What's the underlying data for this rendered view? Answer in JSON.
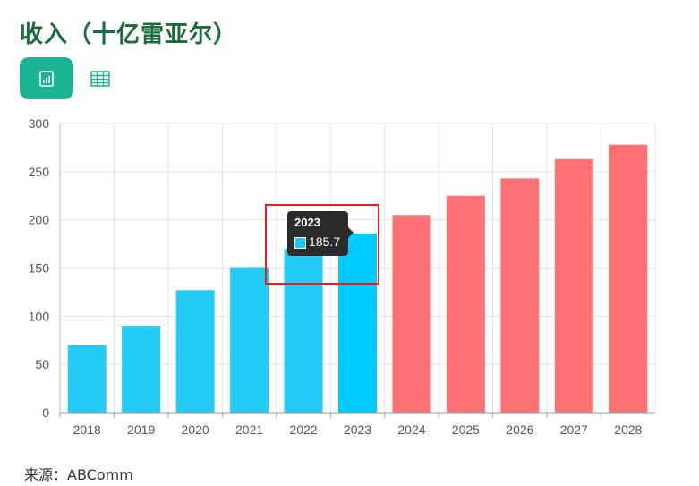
{
  "header": {
    "title": "收入（十亿雷亚尔）"
  },
  "toolbar": {
    "chart_view_icon": "bar-chart-icon",
    "table_view_icon": "table-grid-icon"
  },
  "chart_data": {
    "type": "bar",
    "categories": [
      "2018",
      "2019",
      "2020",
      "2021",
      "2022",
      "2023",
      "2024",
      "2025",
      "2026",
      "2027",
      "2028"
    ],
    "values": [
      70,
      90,
      127,
      151,
      170,
      185.7,
      205,
      225,
      243,
      263,
      278
    ],
    "yticks": [
      "0",
      "50",
      "100",
      "150",
      "200",
      "250",
      "300"
    ],
    "ylim": [
      0,
      300
    ],
    "grid": true,
    "colors": {
      "actual": "#24cbf5",
      "highlight": "#00cbff",
      "forecast": "#ff7273"
    },
    "actual_through": "2023",
    "highlighted_category": "2023"
  },
  "tooltip": {
    "year": "2023",
    "value": "185.7"
  },
  "footer": {
    "source": "来源：ABComm"
  }
}
